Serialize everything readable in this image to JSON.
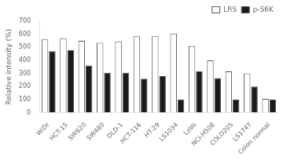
{
  "chart_data": {
    "type": "bar",
    "categories": [
      "WiDr",
      "HCT-15",
      "SW620",
      "SW480",
      "DLD-1",
      "HCT-116",
      "HT-29",
      "LS1034",
      "LoVo",
      "NCI-H508",
      "COLO205",
      "LS174T",
      "Colon normal"
    ],
    "series": [
      {
        "name": "LRS",
        "color": "#ffffff",
        "values": [
          560,
          570,
          550,
          535,
          545,
          585,
          585,
          605,
          510,
          400,
          315,
          300,
          105
        ]
      },
      {
        "name": "p-S6K",
        "color": "#1a1a1a",
        "values": [
          470,
          480,
          360,
          305,
          305,
          260,
          280,
          100,
          315,
          265,
          100,
          200,
          100
        ]
      }
    ],
    "ylabel": "Relative intensity (%)",
    "ylim": [
      0,
      700
    ],
    "yticks": [
      0,
      100,
      200,
      300,
      400,
      500,
      600,
      700
    ],
    "grid": false,
    "legend": "upper right"
  }
}
